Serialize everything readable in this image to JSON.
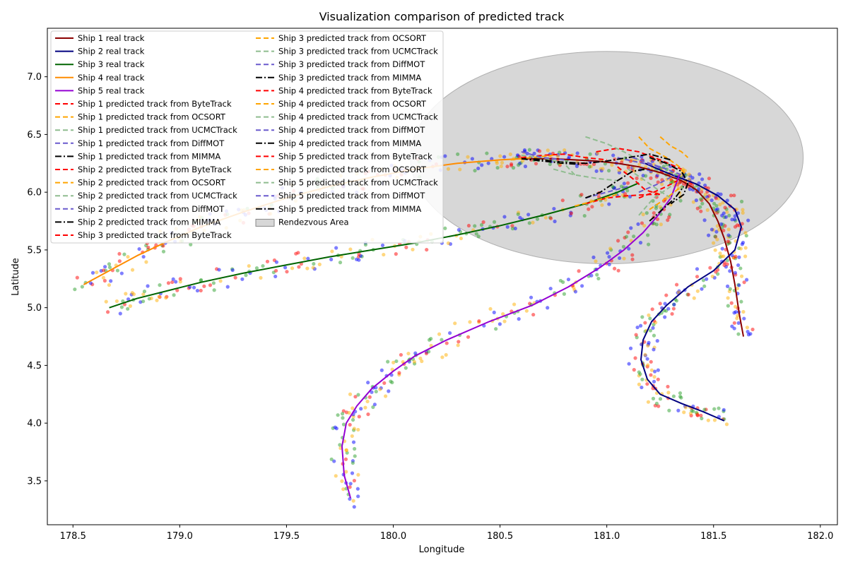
{
  "chart_data": {
    "type": "line",
    "title": "Visualization comparison of predicted track",
    "xlabel": "Longitude",
    "ylabel": "Latitude",
    "xlim": [
      178.38,
      182.08
    ],
    "ylim": [
      3.12,
      7.42
    ],
    "xticks": [
      "178.5",
      "179.0",
      "179.5",
      "180.0",
      "180.5",
      "181.0",
      "181.5",
      "182.0"
    ],
    "yticks": [
      "3.5",
      "4.0",
      "4.5",
      "5.0",
      "5.5",
      "6.0",
      "6.5",
      "7.0"
    ],
    "grid": false,
    "legend_position": "upper-left, two columns",
    "rendezvous_area": {
      "label": "Rendezvous Area",
      "center": [
        181.0,
        6.3
      ],
      "radius_lon": 0.92,
      "radius_lat": 0.92,
      "color": "#b0b0b0"
    },
    "scatter_colors": [
      "#ff0000",
      "#ffb000",
      "#2ca02c",
      "#0000ff"
    ],
    "series": [
      {
        "name": "Ship 1 real track",
        "color": "#8b0000",
        "style": "solid",
        "x": [
          181.64,
          181.62,
          181.6,
          181.58,
          181.55,
          181.52,
          181.48,
          181.42,
          181.35,
          181.25,
          181.15,
          181.05,
          180.95,
          180.85,
          180.75,
          180.65,
          180.6
        ],
        "y": [
          4.75,
          4.95,
          5.2,
          5.4,
          5.6,
          5.75,
          5.9,
          6.02,
          6.1,
          6.17,
          6.22,
          6.25,
          6.27,
          6.28,
          6.29,
          6.29,
          6.29
        ]
      },
      {
        "name": "Ship 2 real track",
        "color": "#00007f",
        "style": "solid",
        "x": [
          181.55,
          181.45,
          181.35,
          181.25,
          181.19,
          181.16,
          181.17,
          181.21,
          181.28,
          181.38,
          181.5,
          181.6,
          181.63,
          181.6,
          181.52,
          181.42,
          181.32,
          181.24,
          181.18
        ],
        "y": [
          4.02,
          4.1,
          4.17,
          4.25,
          4.38,
          4.55,
          4.72,
          4.88,
          5.02,
          5.18,
          5.32,
          5.5,
          5.7,
          5.85,
          5.97,
          6.07,
          6.14,
          6.2,
          6.25
        ]
      },
      {
        "name": "Ship 3 real track",
        "color": "#006400",
        "style": "solid",
        "x": [
          178.67,
          178.8,
          178.95,
          179.1,
          179.3,
          179.5,
          179.7,
          179.9,
          180.1,
          180.3,
          180.5,
          180.7,
          180.9,
          181.05,
          181.15
        ],
        "y": [
          5.0,
          5.08,
          5.15,
          5.22,
          5.3,
          5.37,
          5.44,
          5.5,
          5.56,
          5.63,
          5.71,
          5.8,
          5.9,
          6.0,
          6.08
        ]
      },
      {
        "name": "Ship 4 real track",
        "color": "#ff8c00",
        "style": "solid",
        "x": [
          178.55,
          178.65,
          178.8,
          178.95,
          179.1,
          179.3,
          179.5,
          179.7,
          179.9,
          180.1,
          180.3,
          180.5,
          180.6
        ],
        "y": [
          5.2,
          5.3,
          5.45,
          5.58,
          5.7,
          5.83,
          5.95,
          6.05,
          6.13,
          6.2,
          6.25,
          6.28,
          6.29
        ]
      },
      {
        "name": "Ship 5 real track",
        "color": "#9400d3",
        "style": "solid",
        "x": [
          179.8,
          179.77,
          179.76,
          179.78,
          179.83,
          179.9,
          180.0,
          180.1,
          180.25,
          180.45,
          180.65,
          180.82,
          180.97,
          181.08,
          181.17,
          181.24,
          181.3,
          181.34
        ],
        "y": [
          3.35,
          3.55,
          3.8,
          4.0,
          4.15,
          4.3,
          4.45,
          4.58,
          4.72,
          4.88,
          5.02,
          5.18,
          5.35,
          5.5,
          5.65,
          5.8,
          5.95,
          6.15
        ]
      },
      {
        "name": "Ship 1 predicted track from ByteTrack",
        "color": "#ff0000",
        "style": "dashed",
        "x": [
          180.95,
          181.05,
          181.15,
          181.25,
          181.35
        ],
        "y": [
          6.35,
          6.38,
          6.35,
          6.28,
          6.2
        ]
      },
      {
        "name": "Ship 1 predicted track from OCSORT",
        "color": "#ffa500",
        "style": "dashed",
        "x": [
          181.15,
          181.2,
          181.28,
          181.34,
          181.37
        ],
        "y": [
          6.48,
          6.38,
          6.3,
          6.22,
          6.15
        ]
      },
      {
        "name": "Ship 1 predicted track from UCMCTrack",
        "color": "#8fbc8f",
        "style": "dashed",
        "x": [
          180.9,
          181.0,
          181.08,
          181.15
        ],
        "y": [
          6.48,
          6.42,
          6.35,
          6.28
        ]
      },
      {
        "name": "Ship 1 predicted track from DiffMOT",
        "color": "#6a5acd",
        "style": "dashed",
        "x": [
          181.05,
          181.12,
          181.2,
          181.28
        ],
        "y": [
          6.3,
          6.27,
          6.24,
          6.2
        ]
      },
      {
        "name": "Ship 1 predicted track from MIMMA",
        "color": "#000000",
        "style": "dashdot",
        "x": [
          180.6,
          180.7,
          180.8,
          180.9,
          181.0,
          181.1,
          181.2,
          181.3
        ],
        "y": [
          6.3,
          6.28,
          6.26,
          6.25,
          6.27,
          6.3,
          6.33,
          6.28
        ]
      },
      {
        "name": "Ship 2 predicted track from ByteTrack",
        "color": "#ff0000",
        "style": "dashed",
        "x": [
          181.05,
          181.12,
          181.18,
          181.25
        ],
        "y": [
          6.22,
          6.12,
          6.02,
          5.98
        ]
      },
      {
        "name": "Ship 2 predicted track from OCSORT",
        "color": "#ffa500",
        "style": "dashed",
        "x": [
          181.25,
          181.3,
          181.35,
          181.38
        ],
        "y": [
          6.48,
          6.4,
          6.35,
          6.3
        ]
      },
      {
        "name": "Ship 2 predicted track from UCMCTrack",
        "color": "#8fbc8f",
        "style": "dashed",
        "x": [
          181.1,
          181.18,
          181.24,
          181.3
        ],
        "y": [
          6.2,
          6.1,
          6.02,
          5.95
        ]
      },
      {
        "name": "Ship 2 predicted track from DiffMOT",
        "color": "#6a5acd",
        "style": "dashed",
        "x": [
          181.12,
          181.2,
          181.28,
          181.35
        ],
        "y": [
          6.3,
          6.25,
          6.2,
          6.15
        ]
      },
      {
        "name": "Ship 2 predicted track from MIMMA",
        "color": "#000000",
        "style": "dashdot",
        "x": [
          181.2,
          181.28,
          181.35,
          181.38,
          181.36,
          181.3
        ],
        "y": [
          6.3,
          6.25,
          6.18,
          6.08,
          5.98,
          5.9
        ]
      },
      {
        "name": "Ship 3 predicted track from ByteTrack",
        "color": "#ff0000",
        "style": "dashed",
        "x": [
          180.9,
          181.0,
          181.1,
          181.2,
          181.25
        ],
        "y": [
          5.9,
          5.95,
          5.97,
          5.98,
          5.98
        ]
      },
      {
        "name": "Ship 3 predicted track from OCSORT",
        "color": "#ffa500",
        "style": "dashed",
        "x": [
          180.85,
          180.95,
          181.05
        ],
        "y": [
          5.88,
          5.93,
          5.98
        ]
      },
      {
        "name": "Ship 3 predicted track from UCMCTrack",
        "color": "#8fbc8f",
        "style": "dashed",
        "x": [
          180.75,
          180.85,
          180.95,
          181.05
        ],
        "y": [
          6.2,
          6.15,
          6.12,
          6.1
        ]
      },
      {
        "name": "Ship 3 predicted track from DiffMOT",
        "color": "#6a5acd",
        "style": "dashed",
        "x": [
          180.9,
          181.0,
          181.1
        ],
        "y": [
          5.95,
          6.0,
          6.05
        ]
      },
      {
        "name": "Ship 3 predicted track from MIMMA",
        "color": "#000000",
        "style": "dashdot",
        "x": [
          180.9,
          180.97,
          181.05,
          181.12,
          181.18
        ],
        "y": [
          5.95,
          6.0,
          6.1,
          6.18,
          6.2
        ]
      },
      {
        "name": "Ship 4 predicted track from ByteTrack",
        "color": "#ff0000",
        "style": "dashed",
        "x": [
          180.6,
          180.7,
          180.8,
          180.9,
          181.0
        ],
        "y": [
          6.3,
          6.32,
          6.33,
          6.3,
          6.28
        ]
      },
      {
        "name": "Ship 4 predicted track from OCSORT",
        "color": "#ffa500",
        "style": "dashed",
        "x": [
          180.55,
          180.65,
          180.75
        ],
        "y": [
          6.28,
          6.3,
          6.32
        ]
      },
      {
        "name": "Ship 4 predicted track from UCMCTrack",
        "color": "#8fbc8f",
        "style": "dashed",
        "x": [
          180.6,
          180.7,
          180.8,
          180.85
        ],
        "y": [
          6.32,
          6.3,
          6.25,
          6.15
        ]
      },
      {
        "name": "Ship 4 predicted track from DiffMOT",
        "color": "#6a5acd",
        "style": "dashed",
        "x": [
          180.6,
          180.7,
          180.8
        ],
        "y": [
          6.35,
          6.3,
          6.28
        ]
      },
      {
        "name": "Ship 4 predicted track from MIMMA",
        "color": "#000000",
        "style": "dashdot",
        "x": [
          180.6,
          180.7,
          180.8,
          180.88
        ],
        "y": [
          6.29,
          6.27,
          6.25,
          6.24
        ]
      },
      {
        "name": "Ship 5 predicted track from ByteTrack",
        "color": "#ff0000",
        "style": "dashed",
        "x": [
          181.15,
          181.22,
          181.28,
          181.33
        ],
        "y": [
          5.95,
          6.0,
          6.05,
          6.1
        ]
      },
      {
        "name": "Ship 5 predicted track from OCSORT",
        "color": "#ffa500",
        "style": "dashed",
        "x": [
          181.2,
          181.28,
          181.35
        ],
        "y": [
          5.85,
          5.95,
          6.05
        ]
      },
      {
        "name": "Ship 5 predicted track from UCMCTrack",
        "color": "#8fbc8f",
        "style": "dashed",
        "x": [
          181.15,
          181.22,
          181.3
        ],
        "y": [
          5.8,
          5.95,
          6.05
        ]
      },
      {
        "name": "Ship 5 predicted track from DiffMOT",
        "color": "#6a5acd",
        "style": "dashed",
        "x": [
          181.15,
          181.25,
          181.32
        ],
        "y": [
          6.0,
          6.08,
          6.15
        ]
      },
      {
        "name": "Ship 5 predicted track from MIMMA",
        "color": "#000000",
        "style": "dashdot",
        "x": [
          181.2,
          181.26,
          181.32,
          181.36
        ],
        "y": [
          5.75,
          5.85,
          5.95,
          6.05
        ]
      }
    ],
    "legend_columns": [
      [
        "Ship 1 real track",
        "Ship 2 real track",
        "Ship 3 real track",
        "Ship 4 real track",
        "Ship 5 real track",
        "Ship 1 predicted track from ByteTrack",
        "Ship 1 predicted track from OCSORT",
        "Ship 1 predicted track from UCMCTrack",
        "Ship 1 predicted track from DiffMOT",
        "Ship 1 predicted track from MIMMA",
        "Ship 2 predicted track from ByteTrack",
        "Ship 2 predicted track from OCSORT",
        "Ship 2 predicted track from UCMCTrack",
        "Ship 2 predicted track from DiffMOT",
        "Ship 2 predicted track from MIMMA",
        "Ship 3 predicted track from ByteTrack"
      ],
      [
        "Ship 3 predicted track from OCSORT",
        "Ship 3 predicted track from UCMCTrack",
        "Ship 3 predicted track from DiffMOT",
        "Ship 3 predicted track from MIMMA",
        "Ship 4 predicted track from ByteTrack",
        "Ship 4 predicted track from OCSORT",
        "Ship 4 predicted track from UCMCTrack",
        "Ship 4 predicted track from DiffMOT",
        "Ship 4 predicted track from MIMMA",
        "Ship 5 predicted track from ByteTrack",
        "Ship 5 predicted track from OCSORT",
        "Ship 5 predicted track from UCMCTrack",
        "Ship 5 predicted track from DiffMOT",
        "Ship 5 predicted track from MIMMA",
        "Rendezvous Area"
      ]
    ]
  }
}
